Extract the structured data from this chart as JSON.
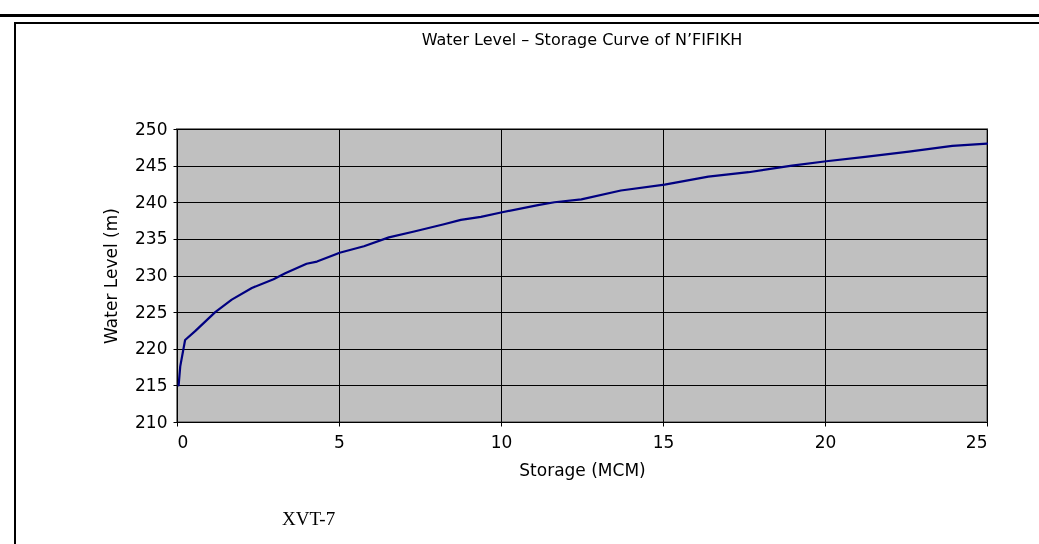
{
  "chart_data": {
    "type": "line",
    "title": "Water Level – Storage Curve of N’FIFIKH",
    "xlabel": "Storage (MCM)",
    "ylabel": "Water Level (m)",
    "annotations": [
      "XVT-7"
    ],
    "xlim": [
      0,
      25
    ],
    "xticks": [
      0,
      5,
      10,
      15,
      20,
      25
    ],
    "ylim": [
      210,
      250
    ],
    "yticks": [
      210,
      215,
      220,
      225,
      230,
      235,
      240,
      245,
      250
    ],
    "grid": true,
    "legend": false,
    "marker": "none",
    "line_style": "solid",
    "series": [
      {
        "color": "#000080",
        "x": [
          0.05,
          0.1,
          0.25,
          0.56,
          1.18,
          1.69,
          2.31,
          2.98,
          3.34,
          4.0,
          4.32,
          5.02,
          5.77,
          6.54,
          7.32,
          8.24,
          8.76,
          9.38,
          10.0,
          11.14,
          11.65,
          12.48,
          13.7,
          15.05,
          16.4,
          17.64,
          18.98,
          20.04,
          21.24,
          22.59,
          23.93,
          25.0
        ],
        "values": [
          215.0,
          217.6,
          221.2,
          222.4,
          225.0,
          226.7,
          228.3,
          229.5,
          230.3,
          231.6,
          231.9,
          233.1,
          234.0,
          235.2,
          236.0,
          237.0,
          237.6,
          238.0,
          238.6,
          239.6,
          240.0,
          240.4,
          241.6,
          242.4,
          243.5,
          244.1,
          245.0,
          245.6,
          246.2,
          246.9,
          247.7,
          248.0
        ]
      }
    ]
  }
}
